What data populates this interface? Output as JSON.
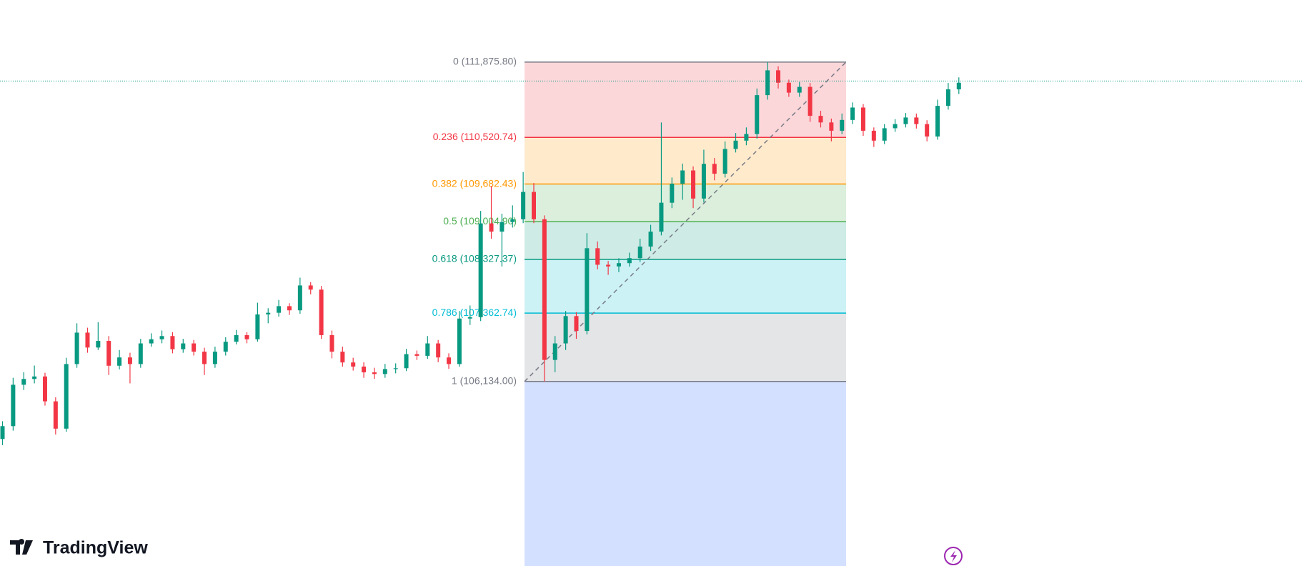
{
  "chart_data": {
    "type": "candlestick",
    "ylim": [
      102817,
      112991
    ],
    "up_color": "#089981",
    "down_color": "#f23645",
    "price_line": 111534,
    "price_line_color": "#089981",
    "candles": [
      [
        105100,
        105420,
        104990,
        105331
      ],
      [
        105331,
        106200,
        105250,
        106075
      ],
      [
        106075,
        106300,
        105980,
        106179
      ],
      [
        106179,
        106420,
        106100,
        106224
      ],
      [
        106224,
        106290,
        105700,
        105777
      ],
      [
        105777,
        105850,
        105180,
        105286
      ],
      [
        105286,
        106560,
        105230,
        106447
      ],
      [
        106447,
        107180,
        106380,
        107012
      ],
      [
        107012,
        107100,
        106650,
        106744
      ],
      [
        106744,
        107200,
        106700,
        106863
      ],
      [
        106863,
        106950,
        106250,
        106417
      ],
      [
        106417,
        106700,
        106350,
        106566
      ],
      [
        106566,
        106650,
        106100,
        106447
      ],
      [
        106447,
        106900,
        106380,
        106818
      ],
      [
        106818,
        107000,
        106760,
        106893
      ],
      [
        106893,
        107050,
        106820,
        106950
      ],
      [
        106950,
        107020,
        106640,
        106714
      ],
      [
        106714,
        106900,
        106650,
        106818
      ],
      [
        106818,
        106880,
        106600,
        106670
      ],
      [
        106670,
        106740,
        106250,
        106447
      ],
      [
        106447,
        106760,
        106380,
        106670
      ],
      [
        106670,
        106930,
        106600,
        106848
      ],
      [
        106848,
        107060,
        106800,
        106967
      ],
      [
        106967,
        107020,
        106820,
        106893
      ],
      [
        106893,
        107550,
        106850,
        107339
      ],
      [
        107339,
        107450,
        107180,
        107369
      ],
      [
        107369,
        107600,
        107300,
        107488
      ],
      [
        107488,
        107540,
        107330,
        107413
      ],
      [
        107413,
        108000,
        107350,
        107860
      ],
      [
        107860,
        107920,
        107700,
        107785
      ],
      [
        107785,
        107850,
        106900,
        106967
      ],
      [
        106967,
        107050,
        106550,
        106670
      ],
      [
        106670,
        106760,
        106400,
        106476
      ],
      [
        106476,
        106560,
        106330,
        106402
      ],
      [
        106402,
        106480,
        106200,
        106298
      ],
      [
        106298,
        106380,
        106180,
        106268
      ],
      [
        106268,
        106450,
        106200,
        106357
      ],
      [
        106357,
        106460,
        106280,
        106372
      ],
      [
        106372,
        106720,
        106320,
        106625
      ],
      [
        106625,
        106690,
        106520,
        106595
      ],
      [
        106595,
        106950,
        106540,
        106818
      ],
      [
        106818,
        106880,
        106480,
        106566
      ],
      [
        106566,
        106640,
        106360,
        106447
      ],
      [
        106447,
        107400,
        106400,
        107265
      ],
      [
        107265,
        107500,
        107150,
        107290
      ],
      [
        107290,
        109200,
        107220,
        108975
      ],
      [
        108975,
        109650,
        108700,
        108827
      ],
      [
        108827,
        109150,
        108200,
        109000
      ],
      [
        109000,
        109300,
        108900,
        109050
      ],
      [
        109050,
        109900,
        108980,
        109541
      ],
      [
        109541,
        109700,
        108980,
        109050
      ],
      [
        109050,
        109120,
        106134,
        106521
      ],
      [
        106521,
        106950,
        106300,
        106818
      ],
      [
        106818,
        107400,
        106700,
        107309
      ],
      [
        107309,
        107380,
        106900,
        107042
      ],
      [
        107042,
        108800,
        106980,
        108529
      ],
      [
        108529,
        108650,
        108150,
        108232
      ],
      [
        108232,
        108300,
        108050,
        108202
      ],
      [
        108202,
        108350,
        108100,
        108261
      ],
      [
        108261,
        108450,
        108200,
        108351
      ],
      [
        108351,
        108700,
        108280,
        108559
      ],
      [
        108559,
        108950,
        108480,
        108827
      ],
      [
        108827,
        110790,
        108760,
        109347
      ],
      [
        109347,
        109800,
        109250,
        109689
      ],
      [
        109689,
        110050,
        109400,
        109927
      ],
      [
        109927,
        110000,
        109250,
        109422
      ],
      [
        109422,
        110300,
        109350,
        110046
      ],
      [
        110046,
        110150,
        109750,
        109868
      ],
      [
        109868,
        110450,
        109800,
        110314
      ],
      [
        110314,
        110600,
        110250,
        110463
      ],
      [
        110463,
        110700,
        110380,
        110582
      ],
      [
        110582,
        111400,
        110500,
        111281
      ],
      [
        111281,
        111876,
        111200,
        111727
      ],
      [
        111727,
        111800,
        111400,
        111504
      ],
      [
        111504,
        111560,
        111250,
        111326
      ],
      [
        111326,
        111520,
        111250,
        111430
      ],
      [
        111430,
        111500,
        110800,
        110909
      ],
      [
        110909,
        111000,
        110700,
        110790
      ],
      [
        110790,
        110860,
        110450,
        110641
      ],
      [
        110641,
        110950,
        110580,
        110835
      ],
      [
        110835,
        111150,
        110760,
        111058
      ],
      [
        111058,
        111120,
        110550,
        110641
      ],
      [
        110641,
        110700,
        110350,
        110463
      ],
      [
        110463,
        110760,
        110400,
        110686
      ],
      [
        110686,
        110850,
        110620,
        110760
      ],
      [
        110760,
        110960,
        110700,
        110879
      ],
      [
        110879,
        110950,
        110680,
        110760
      ],
      [
        110760,
        110830,
        110450,
        110537
      ],
      [
        110537,
        111200,
        110480,
        111088
      ],
      [
        111088,
        111500,
        111020,
        111385
      ],
      [
        111385,
        111600,
        111300,
        111504
      ]
    ],
    "fib_levels": [
      {
        "label": "0 (111,875.80)",
        "price": 111875.8,
        "color": "#787b86",
        "fill": "#f23645"
      },
      {
        "label": "0.236 (110,520.74)",
        "price": 110520.74,
        "color": "#f23645",
        "fill": "#ff9800"
      },
      {
        "label": "0.382 (109,682.43)",
        "price": 109682.43,
        "color": "#ff9800",
        "fill": "#4caf50"
      },
      {
        "label": "0.5 (109,004.90)",
        "price": 109004.9,
        "color": "#4caf50",
        "fill": "#089981"
      },
      {
        "label": "0.618 (108,327.37)",
        "price": 108327.37,
        "color": "#089981",
        "fill": "#00bcd4"
      },
      {
        "label": "0.786 (107,362.74)",
        "price": 107362.74,
        "color": "#00bcd4",
        "fill": "#787b86"
      },
      {
        "label": "1 (106,134.00)",
        "price": 106134,
        "color": "#787b86",
        "fill": "#2962ff"
      }
    ],
    "brand": "TradingView"
  }
}
